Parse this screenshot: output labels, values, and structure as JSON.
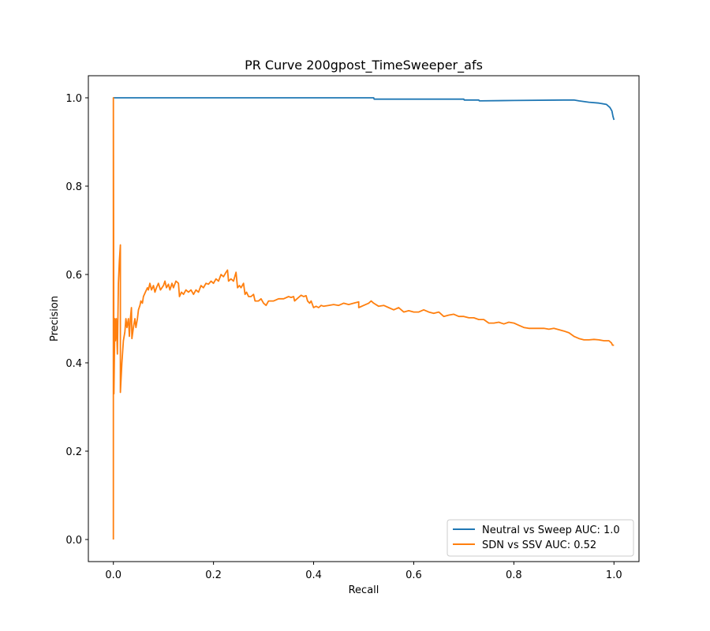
{
  "chart_data": {
    "type": "line",
    "title": "PR Curve 200gpost_TimeSweeper_afs",
    "xlabel": "Recall",
    "ylabel": "Precision",
    "xlim": [
      -0.05,
      1.05
    ],
    "ylim": [
      -0.05,
      1.05
    ],
    "xticks": [
      0.0,
      0.2,
      0.4,
      0.6,
      0.8,
      1.0
    ],
    "yticks": [
      0.0,
      0.2,
      0.4,
      0.6,
      0.8,
      1.0
    ],
    "xtick_labels": [
      "0.0",
      "0.2",
      "0.4",
      "0.6",
      "0.8",
      "1.0"
    ],
    "ytick_labels": [
      "0.0",
      "0.2",
      "0.4",
      "0.6",
      "0.8",
      "1.0"
    ],
    "grid": false,
    "legend_position": "lower right",
    "series": [
      {
        "name": "Neutral vs Sweep AUC: 1.0",
        "color": "#1f77b4",
        "points": [
          [
            0.0,
            1.0
          ],
          [
            0.2,
            1.0
          ],
          [
            0.4,
            1.0
          ],
          [
            0.52,
            1.0
          ],
          [
            0.521,
            0.997
          ],
          [
            0.6,
            0.997
          ],
          [
            0.7,
            0.997
          ],
          [
            0.701,
            0.995
          ],
          [
            0.73,
            0.995
          ],
          [
            0.731,
            0.993
          ],
          [
            0.8,
            0.994
          ],
          [
            0.9,
            0.995
          ],
          [
            0.92,
            0.995
          ],
          [
            0.93,
            0.993
          ],
          [
            0.95,
            0.99
          ],
          [
            0.97,
            0.988
          ],
          [
            0.985,
            0.985
          ],
          [
            0.992,
            0.978
          ],
          [
            0.996,
            0.97
          ],
          [
            0.998,
            0.958
          ],
          [
            1.0,
            0.95
          ]
        ]
      },
      {
        "name": "SDN vs SSV AUC: 0.52",
        "color": "#ff7f0e",
        "points": [
          [
            0.0,
            0.0
          ],
          [
            0.0,
            1.0
          ],
          [
            0.001,
            0.33
          ],
          [
            0.003,
            0.5
          ],
          [
            0.004,
            0.45
          ],
          [
            0.006,
            0.5
          ],
          [
            0.008,
            0.42
          ],
          [
            0.01,
            0.58
          ],
          [
            0.012,
            0.63
          ],
          [
            0.014,
            0.667
          ],
          [
            0.014,
            0.333
          ],
          [
            0.017,
            0.4
          ],
          [
            0.02,
            0.45
          ],
          [
            0.023,
            0.47
          ],
          [
            0.025,
            0.5
          ],
          [
            0.027,
            0.48
          ],
          [
            0.03,
            0.5
          ],
          [
            0.032,
            0.46
          ],
          [
            0.034,
            0.5
          ],
          [
            0.036,
            0.525
          ],
          [
            0.037,
            0.455
          ],
          [
            0.04,
            0.48
          ],
          [
            0.043,
            0.5
          ],
          [
            0.045,
            0.48
          ],
          [
            0.048,
            0.5
          ],
          [
            0.05,
            0.52
          ],
          [
            0.053,
            0.53
          ],
          [
            0.055,
            0.54
          ],
          [
            0.058,
            0.535
          ],
          [
            0.06,
            0.55
          ],
          [
            0.064,
            0.56
          ],
          [
            0.068,
            0.57
          ],
          [
            0.07,
            0.565
          ],
          [
            0.073,
            0.58
          ],
          [
            0.076,
            0.565
          ],
          [
            0.08,
            0.575
          ],
          [
            0.083,
            0.56
          ],
          [
            0.086,
            0.57
          ],
          [
            0.09,
            0.58
          ],
          [
            0.094,
            0.565
          ],
          [
            0.1,
            0.575
          ],
          [
            0.103,
            0.585
          ],
          [
            0.106,
            0.57
          ],
          [
            0.11,
            0.578
          ],
          [
            0.113,
            0.565
          ],
          [
            0.117,
            0.58
          ],
          [
            0.12,
            0.57
          ],
          [
            0.125,
            0.585
          ],
          [
            0.13,
            0.58
          ],
          [
            0.132,
            0.55
          ],
          [
            0.136,
            0.56
          ],
          [
            0.14,
            0.555
          ],
          [
            0.145,
            0.565
          ],
          [
            0.15,
            0.56
          ],
          [
            0.155,
            0.565
          ],
          [
            0.16,
            0.555
          ],
          [
            0.165,
            0.565
          ],
          [
            0.17,
            0.56
          ],
          [
            0.175,
            0.575
          ],
          [
            0.18,
            0.57
          ],
          [
            0.185,
            0.58
          ],
          [
            0.19,
            0.578
          ],
          [
            0.195,
            0.585
          ],
          [
            0.2,
            0.58
          ],
          [
            0.205,
            0.59
          ],
          [
            0.21,
            0.585
          ],
          [
            0.215,
            0.6
          ],
          [
            0.22,
            0.595
          ],
          [
            0.225,
            0.605
          ],
          [
            0.228,
            0.61
          ],
          [
            0.23,
            0.585
          ],
          [
            0.235,
            0.59
          ],
          [
            0.24,
            0.585
          ],
          [
            0.245,
            0.605
          ],
          [
            0.248,
            0.57
          ],
          [
            0.252,
            0.575
          ],
          [
            0.255,
            0.57
          ],
          [
            0.26,
            0.58
          ],
          [
            0.263,
            0.555
          ],
          [
            0.266,
            0.56
          ],
          [
            0.27,
            0.55
          ],
          [
            0.275,
            0.55
          ],
          [
            0.28,
            0.555
          ],
          [
            0.283,
            0.54
          ],
          [
            0.29,
            0.54
          ],
          [
            0.295,
            0.545
          ],
          [
            0.3,
            0.535
          ],
          [
            0.305,
            0.53
          ],
          [
            0.31,
            0.54
          ],
          [
            0.32,
            0.54
          ],
          [
            0.33,
            0.545
          ],
          [
            0.34,
            0.545
          ],
          [
            0.35,
            0.55
          ],
          [
            0.355,
            0.548
          ],
          [
            0.36,
            0.55
          ],
          [
            0.362,
            0.54
          ],
          [
            0.37,
            0.548
          ],
          [
            0.375,
            0.553
          ],
          [
            0.38,
            0.55
          ],
          [
            0.385,
            0.552
          ],
          [
            0.388,
            0.54
          ],
          [
            0.392,
            0.535
          ],
          [
            0.395,
            0.54
          ],
          [
            0.4,
            0.525
          ],
          [
            0.405,
            0.528
          ],
          [
            0.41,
            0.525
          ],
          [
            0.415,
            0.53
          ],
          [
            0.42,
            0.528
          ],
          [
            0.43,
            0.53
          ],
          [
            0.44,
            0.532
          ],
          [
            0.45,
            0.53
          ],
          [
            0.46,
            0.535
          ],
          [
            0.47,
            0.532
          ],
          [
            0.48,
            0.535
          ],
          [
            0.49,
            0.538
          ],
          [
            0.49,
            0.525
          ],
          [
            0.5,
            0.53
          ],
          [
            0.51,
            0.535
          ],
          [
            0.515,
            0.54
          ],
          [
            0.52,
            0.535
          ],
          [
            0.53,
            0.528
          ],
          [
            0.54,
            0.53
          ],
          [
            0.55,
            0.525
          ],
          [
            0.56,
            0.52
          ],
          [
            0.57,
            0.525
          ],
          [
            0.58,
            0.515
          ],
          [
            0.59,
            0.518
          ],
          [
            0.6,
            0.515
          ],
          [
            0.61,
            0.515
          ],
          [
            0.62,
            0.52
          ],
          [
            0.63,
            0.515
          ],
          [
            0.64,
            0.512
          ],
          [
            0.65,
            0.515
          ],
          [
            0.66,
            0.505
          ],
          [
            0.67,
            0.508
          ],
          [
            0.68,
            0.51
          ],
          [
            0.69,
            0.505
          ],
          [
            0.7,
            0.505
          ],
          [
            0.71,
            0.502
          ],
          [
            0.72,
            0.502
          ],
          [
            0.73,
            0.498
          ],
          [
            0.74,
            0.498
          ],
          [
            0.75,
            0.49
          ],
          [
            0.76,
            0.49
          ],
          [
            0.77,
            0.492
          ],
          [
            0.78,
            0.488
          ],
          [
            0.79,
            0.492
          ],
          [
            0.8,
            0.49
          ],
          [
            0.81,
            0.485
          ],
          [
            0.82,
            0.48
          ],
          [
            0.83,
            0.478
          ],
          [
            0.84,
            0.478
          ],
          [
            0.85,
            0.478
          ],
          [
            0.86,
            0.478
          ],
          [
            0.87,
            0.476
          ],
          [
            0.88,
            0.478
          ],
          [
            0.89,
            0.475
          ],
          [
            0.9,
            0.472
          ],
          [
            0.91,
            0.468
          ],
          [
            0.92,
            0.46
          ],
          [
            0.93,
            0.455
          ],
          [
            0.94,
            0.452
          ],
          [
            0.95,
            0.452
          ],
          [
            0.96,
            0.453
          ],
          [
            0.97,
            0.452
          ],
          [
            0.98,
            0.45
          ],
          [
            0.99,
            0.45
          ],
          [
            0.995,
            0.445
          ],
          [
            0.997,
            0.44
          ],
          [
            1.0,
            0.44
          ]
        ]
      }
    ]
  }
}
